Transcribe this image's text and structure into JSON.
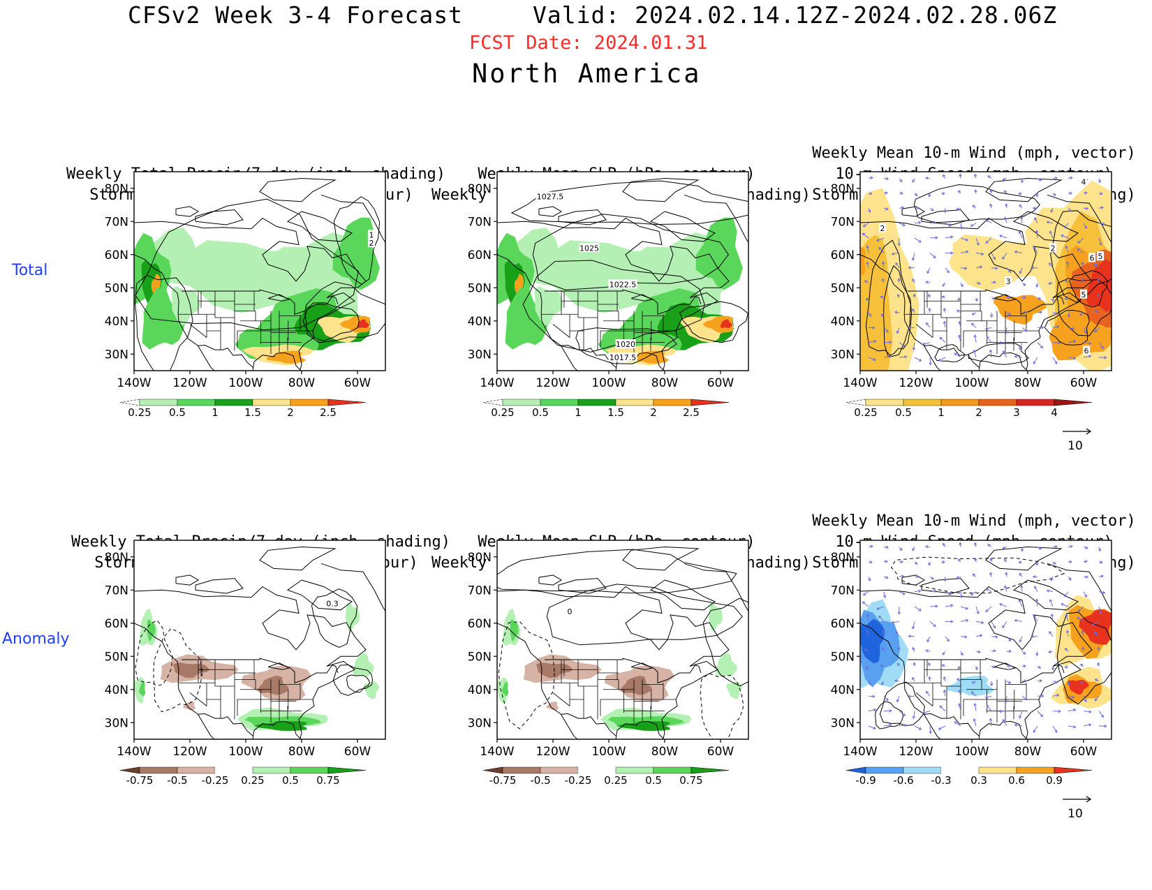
{
  "header": {
    "title": "CFSv2 Week 3-4 Forecast",
    "valid": "Valid: 2024.02.14.12Z-2024.02.28.06Z",
    "fcst_date": "FCST Date: 2024.01.31",
    "region": "North America"
  },
  "rows": {
    "total_label": "Total",
    "anomaly_label": "Anomaly"
  },
  "titles": {
    "col1": [
      "Weekly Total Precip/7-day (inch, shading)",
      "Storm Track Density/7-day (contour)"
    ],
    "col2": [
      "Weekly Mean SLP (hPa, contour)",
      "Weekly Total Precip/7-day (inch, shading)"
    ],
    "col3": [
      "Weekly Mean 10-m Wind (mph, vector)",
      "10-m Wind Speed (mph, contour)",
      "Storm Track Density/7-day (shading)"
    ]
  },
  "axes": {
    "lat_ticks": [
      "80N",
      "70N",
      "60N",
      "50N",
      "40N",
      "30N"
    ],
    "lon_ticks": [
      "140W",
      "120W",
      "100W",
      "80W",
      "60W"
    ]
  },
  "colorbars": {
    "precip_total": {
      "labels": [
        "0.25",
        "0.5",
        "1",
        "1.5",
        "2",
        "2.5"
      ],
      "colors": [
        "#ffffff",
        "#b4f0b4",
        "#5ad75a",
        "#18a018",
        "#fde38b",
        "#f7a21e",
        "#e8321e"
      ]
    },
    "storm_total": {
      "labels": [
        "0.25",
        "0.5",
        "1",
        "2",
        "3",
        "4"
      ],
      "colors": [
        "#ffffff",
        "#fde38b",
        "#f7c03a",
        "#f29a1e",
        "#e8641e",
        "#d2281e",
        "#a01414"
      ]
    },
    "precip_anom": {
      "labels": [
        "-0.75",
        "-0.5",
        "-0.25",
        "0.25",
        "0.5",
        "0.75"
      ],
      "colors": [
        "#6b3e2e",
        "#a77967",
        "#d6b3a5",
        "#ffffff",
        "#b4f0b4",
        "#5ad75a",
        "#18a018"
      ]
    },
    "storm_anom": {
      "labels": [
        "-0.9",
        "-0.6",
        "-0.3",
        "0.3",
        "0.6",
        "0.9"
      ],
      "colors": [
        "#1e64dc",
        "#5aa0f0",
        "#a0dcf5",
        "#ffffff",
        "#fde38b",
        "#f7a21e",
        "#e8321e"
      ]
    }
  },
  "vector_reference": "10",
  "contour_labels": {
    "slp_total": [
      "1027.5",
      "1025",
      "1022.5",
      "1020",
      "1017.5"
    ],
    "storm_total": [
      "1",
      "2"
    ],
    "wind_total": [
      "2",
      "3",
      "4",
      "5",
      "6"
    ],
    "storm_anom": [
      "0.3"
    ],
    "slp_anom": [
      "0"
    ]
  }
}
